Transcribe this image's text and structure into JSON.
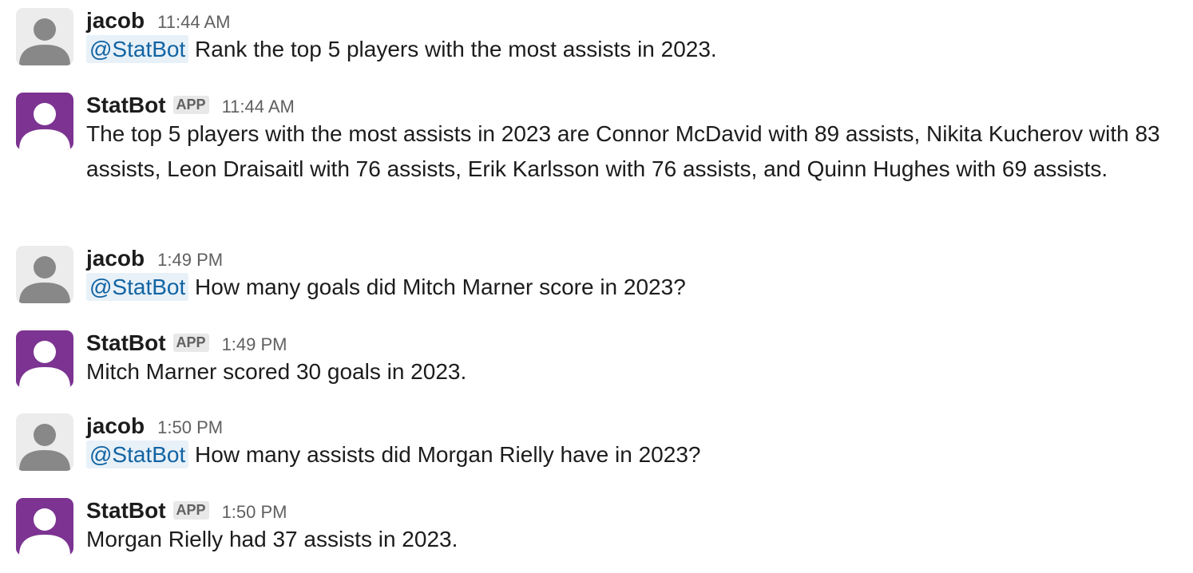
{
  "messages": [
    {
      "sender": "jacob",
      "time": "11:44 AM",
      "mention": "@StatBot",
      "text": " Rank the top 5 players with the most assists in 2023."
    },
    {
      "sender": "StatBot",
      "badge": "APP",
      "time": "11:44 AM",
      "text": "The top 5 players with the most assists in 2023 are Connor McDavid with 89 assists, Nikita Kucherov with 83 assists, Leon Draisaitl with 76 assists, Erik Karlsson with 76 assists, and Quinn Hughes with 69 assists."
    },
    {
      "sender": "jacob",
      "time": "1:49 PM",
      "mention": "@StatBot",
      "text": " How many goals did Mitch Marner score in 2023?"
    },
    {
      "sender": "StatBot",
      "badge": "APP",
      "time": "1:49 PM",
      "text": "Mitch Marner scored 30 goals in 2023."
    },
    {
      "sender": "jacob",
      "time": "1:50 PM",
      "mention": "@StatBot",
      "text": " How many assists did Morgan Rielly have in 2023?"
    },
    {
      "sender": "StatBot",
      "badge": "APP",
      "time": "1:50 PM",
      "text": "Morgan Rielly had 37 assists in 2023."
    }
  ],
  "colors": {
    "bot_avatar": "#7c3391",
    "user_avatar": "#ececec",
    "mention_text": "#1264a3",
    "mention_bg": "#e8f1f8",
    "timestamp": "#616061"
  },
  "icons": {
    "user_avatar": "person-silhouette-icon",
    "bot_avatar": "person-silhouette-icon"
  }
}
